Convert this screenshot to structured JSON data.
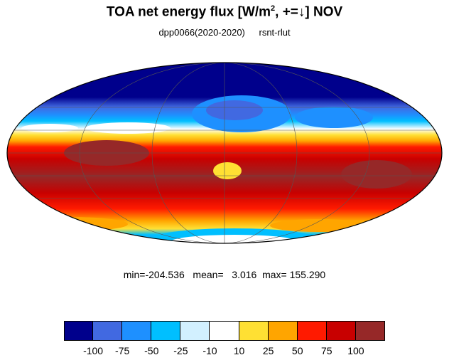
{
  "title": {
    "prefix": "TOA net energy flux  [W/m",
    "sup": "2",
    "suffix": ", +=↓] NOV"
  },
  "subtitle": {
    "left": "dpp0066(2020-2020)",
    "right": "rsnt-rlut"
  },
  "stats": "min=-204.536   mean=   3.016  max= 155.290",
  "colorbar": {
    "colors": [
      "#00008c",
      "#4169e1",
      "#1e90ff",
      "#00bfff",
      "#d2f0ff",
      "#ffffff",
      "#ffe033",
      "#ffa500",
      "#ff1a00",
      "#c80000",
      "#962828"
    ],
    "labels": [
      "-100",
      "-75",
      "-50",
      "-25",
      "-10",
      "10",
      "25",
      "50",
      "75",
      "100"
    ]
  }
}
